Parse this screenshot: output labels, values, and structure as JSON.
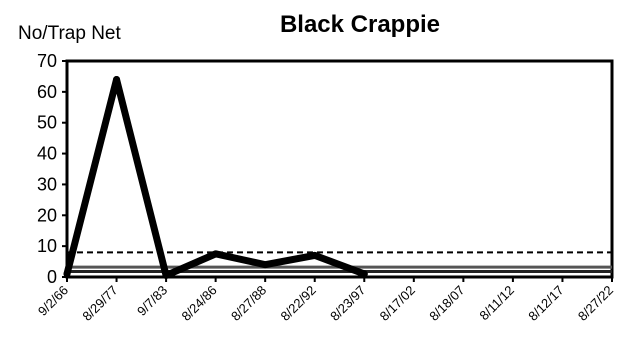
{
  "chart_data": {
    "type": "line",
    "title": "Black Crappie",
    "ylabel": "No/Trap Net",
    "xlabel": "",
    "ylim": [
      0,
      70
    ],
    "yticks": [
      0,
      10,
      20,
      30,
      40,
      50,
      60,
      70
    ],
    "categories": [
      "9/2/66",
      "8/29/77",
      "9/7/83",
      "8/24/86",
      "8/27/88",
      "8/22/92",
      "8/23/97",
      "8/17/02",
      "8/18/07",
      "8/11/12",
      "8/12/17",
      "8/27/22"
    ],
    "grid": false,
    "legend": "none",
    "series": [
      {
        "values": [
          1,
          64,
          0.5,
          7.5,
          4,
          7,
          1,
          null,
          null,
          null,
          null,
          null
        ],
        "color": "#000000",
        "style": "solid-heavy"
      }
    ],
    "reference_lines": [
      {
        "value": 8,
        "style": "dashed",
        "color": "#000000"
      },
      {
        "value": 3.2,
        "style": "solid",
        "color": "#555555"
      },
      {
        "value": 1.8,
        "style": "solid",
        "color": "#222222"
      }
    ]
  }
}
